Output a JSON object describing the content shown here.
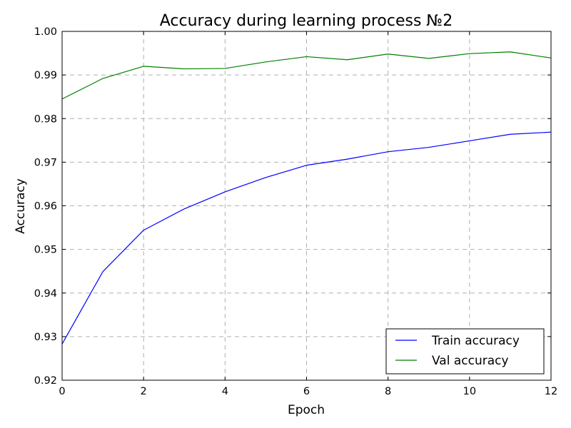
{
  "chart_data": {
    "type": "line",
    "title": "Accuracy during learning process №2",
    "xlabel": "Epoch",
    "ylabel": "Accuracy",
    "xlim": [
      0,
      12
    ],
    "ylim": [
      0.92,
      1.0
    ],
    "x_ticks": [
      "0",
      "2",
      "4",
      "6",
      "8",
      "10",
      "12"
    ],
    "y_ticks": [
      "0.92",
      "0.93",
      "0.94",
      "0.95",
      "0.96",
      "0.97",
      "0.98",
      "0.99",
      "1.00"
    ],
    "grid": true,
    "legend_position": "lower-right",
    "x": [
      0,
      1,
      2,
      3,
      4,
      5,
      6,
      7,
      8,
      9,
      10,
      11,
      12
    ],
    "series": [
      {
        "name": "Train accuracy",
        "color": "#0000ff",
        "values": [
          0.9283,
          0.9449,
          0.9544,
          0.9593,
          0.9632,
          0.9665,
          0.9693,
          0.9707,
          0.9724,
          0.9734,
          0.9749,
          0.9764,
          0.9769
        ]
      },
      {
        "name": "Val accuracy",
        "color": "#008000",
        "values": [
          0.9845,
          0.9892,
          0.992,
          0.9914,
          0.9915,
          0.993,
          0.9942,
          0.9935,
          0.9948,
          0.9938,
          0.9949,
          0.9953,
          0.9939
        ]
      }
    ]
  }
}
